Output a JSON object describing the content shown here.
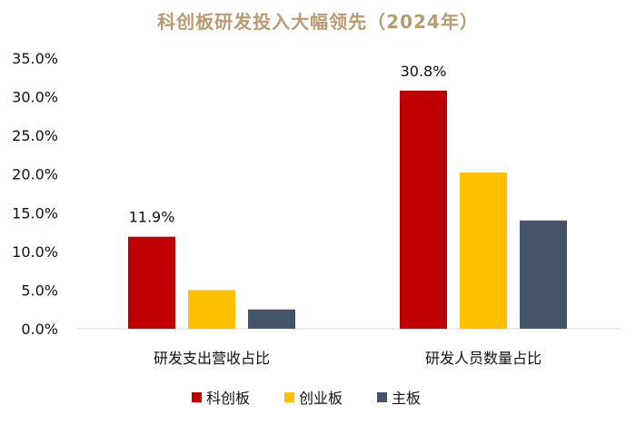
{
  "chart_data": {
    "type": "bar",
    "title": "科创板研发投入大幅领先（2024年）",
    "categories": [
      "研发支出营收占比",
      "研发人员数量占比"
    ],
    "series": [
      {
        "name": "科创板",
        "color": "#c00000",
        "values": [
          11.9,
          30.8
        ]
      },
      {
        "name": "创业板",
        "color": "#ffc000",
        "values": [
          5.0,
          20.2
        ]
      },
      {
        "name": "主板",
        "color": "#44546a",
        "values": [
          2.5,
          14.0
        ]
      }
    ],
    "data_labels": [
      {
        "series": "科创板",
        "category": "研发支出营收占比",
        "text": "11.9%"
      },
      {
        "series": "科创板",
        "category": "研发人员数量占比",
        "text": "30.8%"
      }
    ],
    "y_ticks": [
      "0.0%",
      "5.0%",
      "10.0%",
      "15.0%",
      "20.0%",
      "25.0%",
      "30.0%",
      "35.0%"
    ],
    "ylim": [
      0,
      35
    ],
    "xlabel": "",
    "ylabel": "",
    "grid": false,
    "legend_position": "bottom"
  }
}
